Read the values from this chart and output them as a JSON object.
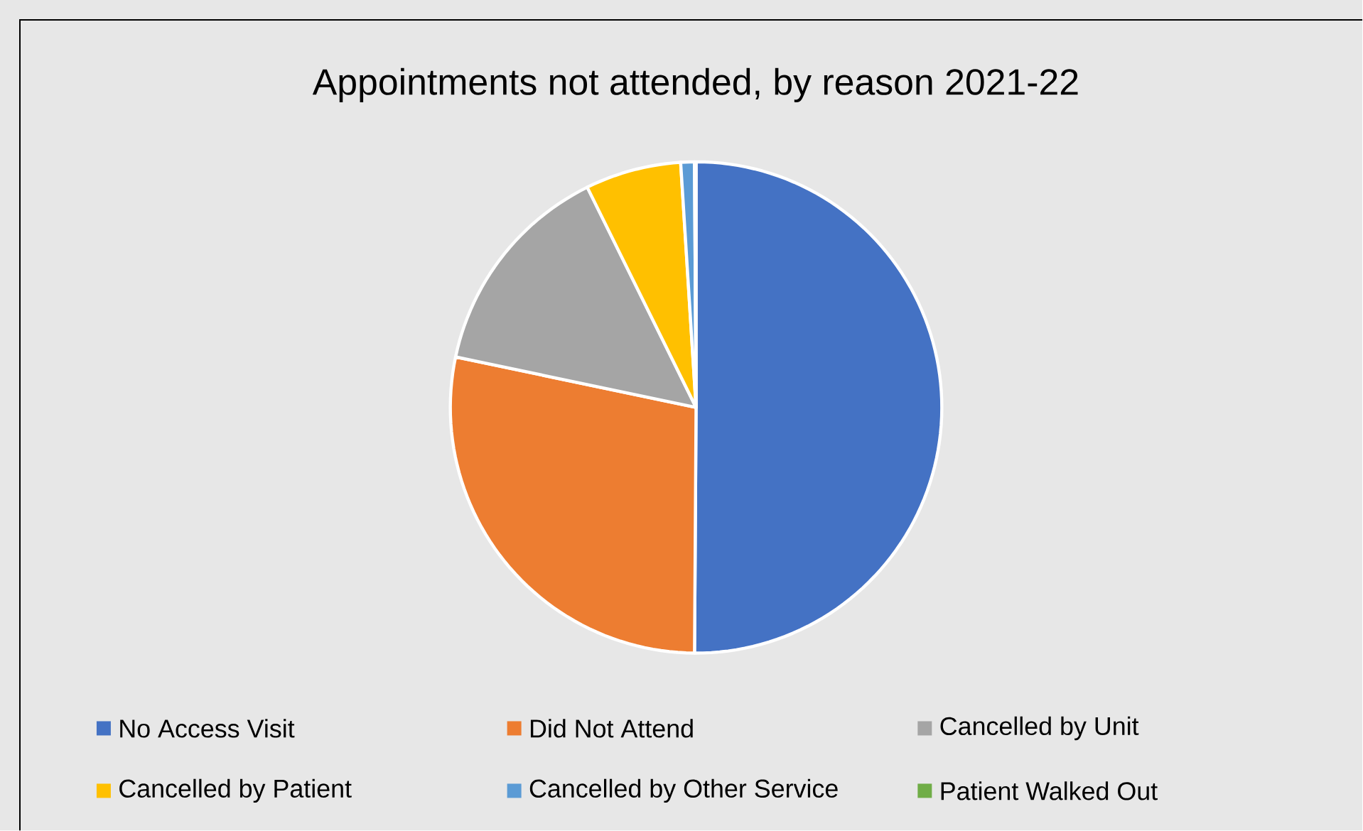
{
  "chart_data": {
    "type": "pie",
    "title": "Appointments not attended, by reason 2021-22",
    "categories": [
      "No Access Visit",
      "Did Not Attend",
      "Cancelled by Unit",
      "Cancelled by Patient",
      "Cancelled by Other Service",
      "Patient Walked Out"
    ],
    "values": [
      50.1,
      28.2,
      14.4,
      6.3,
      0.9,
      0.1
    ],
    "colors": [
      "#4472c4",
      "#ed7d31",
      "#a5a5a5",
      "#ffc000",
      "#5b9bd5",
      "#70ad47"
    ],
    "legend": "bottom"
  }
}
